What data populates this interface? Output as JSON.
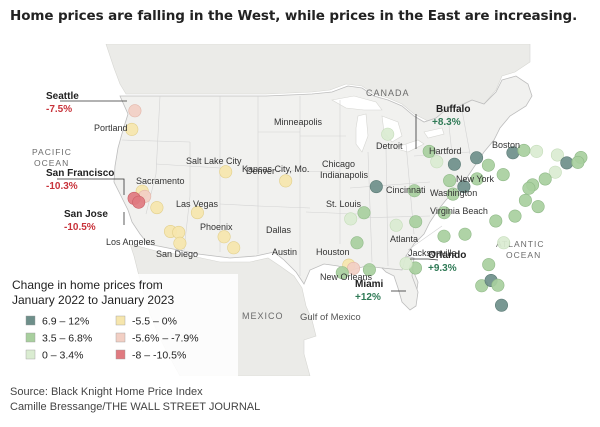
{
  "title": "Home prices are falling in the West, while prices in the East are increasing.",
  "source": "Source: Black Knight Home Price Index",
  "credit": "Camille Bressange/THE WALL STREET JOURNAL",
  "colors": {
    "c1": "#6e8f8a",
    "c2": "#a8cf9e",
    "c3": "#daecd1",
    "c4": "#f6e6ad",
    "c5": "#f2cfc4",
    "c6": "#e07a80",
    "land": "#f1f1ef",
    "canada": "#ebebe8",
    "water": "#ffffff",
    "border": "#c8c8c8",
    "green_text": "#2f7a56",
    "red_text": "#c8323a"
  },
  "map": {
    "regions": [
      "CANADA",
      "PACIFIC OCEAN",
      "ATLANTIC OCEAN",
      "MEXICO",
      "Gulf of Mexico"
    ],
    "city_labels": [
      "Minneapolis",
      "Detroit",
      "Hartford",
      "Boston",
      "Chicago",
      "Indianapolis",
      "Kansas City, Mo.",
      "St. Louis",
      "Cincinnati",
      "New York",
      "Washington",
      "Virginia Beach",
      "Salt Lake City",
      "Denver",
      "Sacramento",
      "Las Vegas",
      "Phoenix",
      "Los Angeles",
      "San Diego",
      "Dallas",
      "Austin",
      "Houston",
      "New Orleans",
      "Atlanta",
      "Jacksonville",
      "Portland"
    ],
    "callouts": [
      {
        "name": "Seattle",
        "value": "-7.5%"
      },
      {
        "name": "San Francisco",
        "value": "-10.3%"
      },
      {
        "name": "San Jose",
        "value": "-10.5%"
      },
      {
        "name": "Buffalo",
        "value": "+8.3%"
      },
      {
        "name": "Orlando",
        "value": "+9.3%"
      },
      {
        "name": "Miami",
        "value": "+12%"
      }
    ],
    "markers": [
      {
        "bin": 5,
        "lon": -122.33,
        "lat": 47.61
      },
      {
        "bin": 4,
        "lon": -122.68,
        "lat": 45.52
      },
      {
        "bin": 4,
        "lon": -121.49,
        "lat": 38.58
      },
      {
        "bin": 5,
        "lon": -121.2,
        "lat": 38.0
      },
      {
        "bin": 6,
        "lon": -122.42,
        "lat": 37.77
      },
      {
        "bin": 6,
        "lon": -121.89,
        "lat": 37.34
      },
      {
        "bin": 4,
        "lon": -119.8,
        "lat": 36.74
      },
      {
        "bin": 4,
        "lon": -118.24,
        "lat": 34.05
      },
      {
        "bin": 4,
        "lon": -117.29,
        "lat": 33.95
      },
      {
        "bin": 4,
        "lon": -117.16,
        "lat": 32.72
      },
      {
        "bin": 4,
        "lon": -115.14,
        "lat": 36.17
      },
      {
        "bin": 4,
        "lon": -111.89,
        "lat": 40.76
      },
      {
        "bin": 4,
        "lon": -104.99,
        "lat": 39.74
      },
      {
        "bin": 4,
        "lon": -112.07,
        "lat": 33.45
      },
      {
        "bin": 4,
        "lon": -110.97,
        "lat": 32.22
      },
      {
        "bin": 3,
        "lon": -93.27,
        "lat": 44.98
      },
      {
        "bin": 3,
        "lon": -87.63,
        "lat": 41.88
      },
      {
        "bin": 2,
        "lon": -88.5,
        "lat": 43.05
      },
      {
        "bin": 1,
        "lon": -94.58,
        "lat": 39.1
      },
      {
        "bin": 2,
        "lon": -90.2,
        "lat": 38.63
      },
      {
        "bin": 2,
        "lon": -86.16,
        "lat": 39.77
      },
      {
        "bin": 1,
        "lon": -85.6,
        "lat": 41.6
      },
      {
        "bin": 1,
        "lon": -83.05,
        "lat": 42.33
      },
      {
        "bin": 2,
        "lon": -81.69,
        "lat": 41.5
      },
      {
        "bin": 1,
        "lon": -84.51,
        "lat": 39.1
      },
      {
        "bin": 2,
        "lon": -82.99,
        "lat": 39.96
      },
      {
        "bin": 2,
        "lon": -79.99,
        "lat": 40.44
      },
      {
        "bin": 1,
        "lon": -78.88,
        "lat": 42.89
      },
      {
        "bin": 2,
        "lon": -77.61,
        "lat": 43.16
      },
      {
        "bin": 3,
        "lon": -76.15,
        "lat": 43.05
      },
      {
        "bin": 3,
        "lon": -73.76,
        "lat": 42.65
      },
      {
        "bin": 1,
        "lon": -72.68,
        "lat": 41.76
      },
      {
        "bin": 2,
        "lon": -71.06,
        "lat": 42.36
      },
      {
        "bin": 2,
        "lon": -71.41,
        "lat": 41.82
      },
      {
        "bin": 3,
        "lon": -74.0,
        "lat": 40.71
      },
      {
        "bin": 2,
        "lon": -75.17,
        "lat": 39.95
      },
      {
        "bin": 2,
        "lon": -76.61,
        "lat": 39.29
      },
      {
        "bin": 2,
        "lon": -77.04,
        "lat": 38.91
      },
      {
        "bin": 2,
        "lon": -77.44,
        "lat": 37.54
      },
      {
        "bin": 2,
        "lon": -75.98,
        "lat": 36.85
      },
      {
        "bin": 2,
        "lon": -78.64,
        "lat": 35.78
      },
      {
        "bin": 2,
        "lon": -80.84,
        "lat": 35.23
      },
      {
        "bin": 3,
        "lon": -79.94,
        "lat": 32.78
      },
      {
        "bin": 2,
        "lon": -84.39,
        "lat": 33.75
      },
      {
        "bin": 2,
        "lon": -86.78,
        "lat": 36.16
      },
      {
        "bin": 2,
        "lon": -85.76,
        "lat": 38.25
      },
      {
        "bin": 2,
        "lon": -90.05,
        "lat": 35.15
      },
      {
        "bin": 2,
        "lon": -86.8,
        "lat": 33.52
      },
      {
        "bin": 3,
        "lon": -97.52,
        "lat": 35.47
      },
      {
        "bin": 2,
        "lon": -95.99,
        "lat": 36.15
      },
      {
        "bin": 2,
        "lon": -96.8,
        "lat": 32.78
      },
      {
        "bin": 4,
        "lon": -97.74,
        "lat": 30.27
      },
      {
        "bin": 5,
        "lon": -97.2,
        "lat": 29.9
      },
      {
        "bin": 2,
        "lon": -98.49,
        "lat": 29.42
      },
      {
        "bin": 2,
        "lon": -95.37,
        "lat": 29.76
      },
      {
        "bin": 3,
        "lon": -92.29,
        "lat": 34.75
      },
      {
        "bin": 2,
        "lon": -90.07,
        "lat": 29.95
      },
      {
        "bin": 3,
        "lon": -91.15,
        "lat": 30.45
      },
      {
        "bin": 2,
        "lon": -81.66,
        "lat": 30.33
      },
      {
        "bin": 2,
        "lon": -82.46,
        "lat": 27.95
      },
      {
        "bin": 1,
        "lon": -81.38,
        "lat": 28.54
      },
      {
        "bin": 2,
        "lon": -80.6,
        "lat": 28.0
      },
      {
        "bin": 1,
        "lon": -80.19,
        "lat": 25.76
      }
    ]
  },
  "legend": {
    "title_line1": "Change in home prices from",
    "title_line2": "January 2022 to January 2023",
    "items": [
      {
        "label": "6.9 – 12%",
        "color": "#6e8f8a"
      },
      {
        "label": "-5.5 – 0%",
        "color": "#f6e6ad"
      },
      {
        "label": "3.5 – 6.8%",
        "color": "#a8cf9e"
      },
      {
        "label": "-5.6% – -7.9%",
        "color": "#f2cfc4"
      },
      {
        "label": "0 – 3.4%",
        "color": "#daecd1"
      },
      {
        "label": "-8 – -10.5%",
        "color": "#e07a80"
      }
    ]
  }
}
